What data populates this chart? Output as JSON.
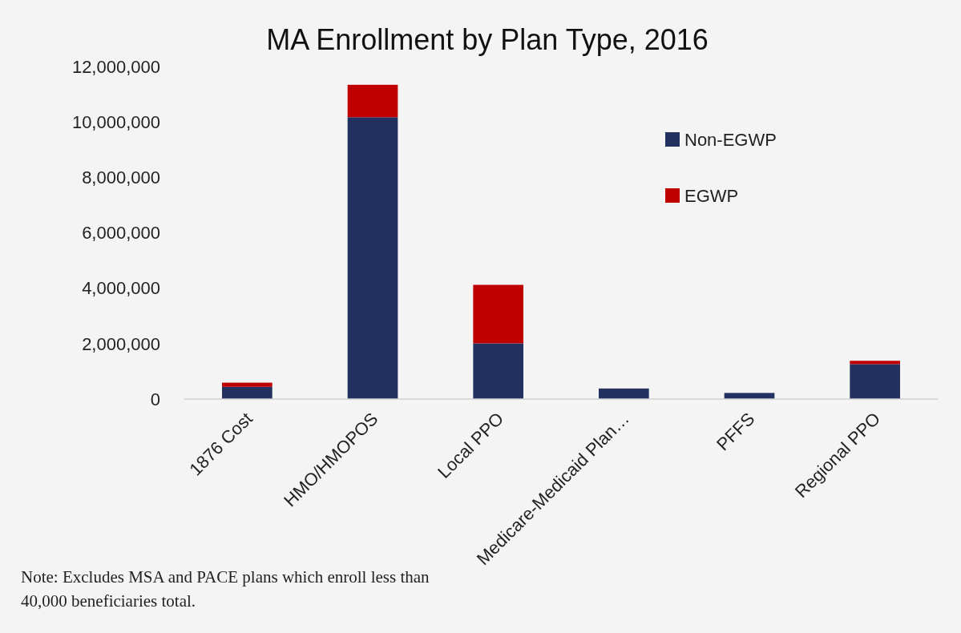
{
  "chart_data": {
    "type": "bar",
    "title": "MA Enrollment by Plan Type, 2016",
    "categories": [
      "1876 Cost",
      "HMO/HMOPOS",
      "Local PPO",
      "Medicare-Medicaid Plan…",
      "PFFS",
      "Regional PPO"
    ],
    "stacked": true,
    "series": [
      {
        "name": "Non-EGWP",
        "color": "#22315f",
        "values": [
          440000,
          10170000,
          2010000,
          380000,
          220000,
          1260000
        ]
      },
      {
        "name": "EGWP",
        "color": "#c00000",
        "values": [
          150000,
          1170000,
          2110000,
          0,
          0,
          120000
        ]
      }
    ],
    "ylim": [
      0,
      12000000
    ],
    "yticks": [
      {
        "value": 0,
        "label": "0"
      },
      {
        "value": 2000000,
        "label": "2,000,000"
      },
      {
        "value": 4000000,
        "label": "4,000,000"
      },
      {
        "value": 6000000,
        "label": "6,000,000"
      },
      {
        "value": 8000000,
        "label": "8,000,000"
      },
      {
        "value": 10000000,
        "label": "10,000,000"
      },
      {
        "value": 12000000,
        "label": "12,000,000"
      }
    ],
    "grid": false,
    "legend": "top right",
    "annotations": [
      "Note: Excludes MSA and PACE plans which enroll less than 40,000 beneficiaries total."
    ]
  }
}
